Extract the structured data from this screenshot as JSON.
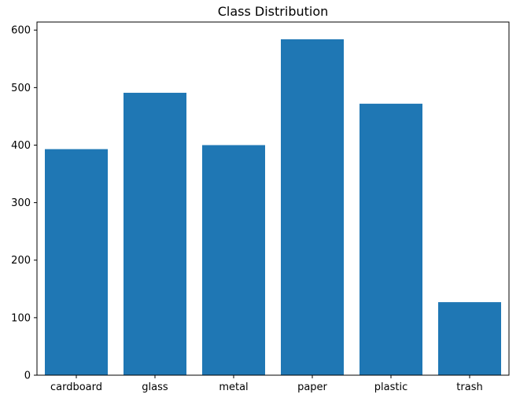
{
  "chart_data": {
    "type": "bar",
    "title": "Class Distribution",
    "xlabel": "",
    "ylabel": "",
    "categories": [
      "cardboard",
      "glass",
      "metal",
      "paper",
      "plastic",
      "trash"
    ],
    "values": [
      393,
      491,
      400,
      584,
      472,
      127
    ],
    "ylim": [
      0,
      614
    ],
    "yticks": [
      0,
      100,
      200,
      300,
      400,
      500,
      600
    ],
    "grid": false,
    "legend": "none",
    "bar_color": "#1f77b4"
  }
}
